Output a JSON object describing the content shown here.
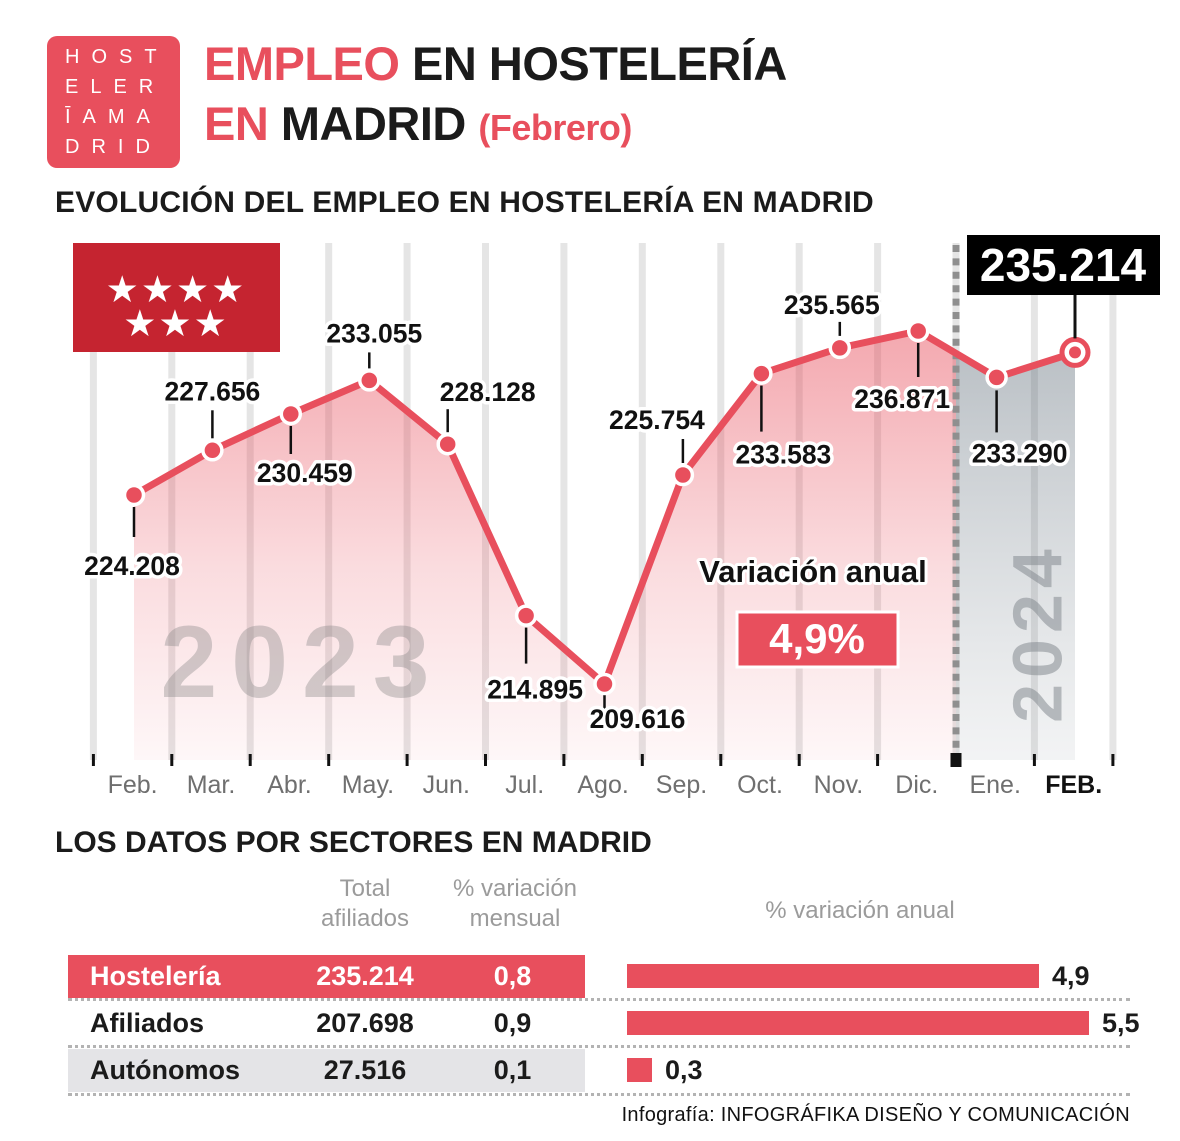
{
  "header": {
    "logo": {
      "lines": [
        "HOST",
        "ELER",
        "ĪAMA",
        "DRID"
      ]
    },
    "title": {
      "line1_accent": "EMPLEO",
      "line1_rest": " EN HOSTELERÍA",
      "line2_accent": "EN",
      "line2_rest": " MADRID ",
      "qualifier": "(Febrero)"
    }
  },
  "chart": {
    "section_title": "EVOLUCIÓN DEL EMPLEO EN HOSTELERÍA EN MADRID"
  },
  "chart_data": {
    "type": "line",
    "title": "EVOLUCIÓN DEL EMPLEO EN HOSTELERÍA EN MADRID",
    "x_categories": [
      "Feb.",
      "Mar.",
      "Abr.",
      "May.",
      "Jun.",
      "Jul.",
      "Ago.",
      "Sep.",
      "Oct.",
      "Nov.",
      "Dic.",
      "Ene.",
      "FEB."
    ],
    "values": [
      224208,
      227656,
      230459,
      233055,
      228128,
      214895,
      209616,
      225754,
      233583,
      235565,
      236871,
      233290,
      235214
    ],
    "point_labels": [
      "224.208",
      "227.656",
      "230.459",
      "233.055",
      "228.128",
      "214.895",
      "209.616",
      "225.754",
      "233.583",
      "235.565",
      "236.871",
      "233.290",
      "235.214"
    ],
    "watermarks": [
      "2023",
      "2024"
    ],
    "highlight": {
      "category": "FEB.",
      "label": "235.214"
    },
    "annotation": {
      "label": "Variación anual",
      "value": "4,9%"
    },
    "ylim": [
      205000,
      240000
    ],
    "grid": "vertical",
    "flag_stars": 7,
    "legend_position": "none"
  },
  "sectors": {
    "section_title": "LOS DATOS POR SECTORES EN MADRID",
    "columns": {
      "total": "Total\nafiliados",
      "monthly": "% variación\nmensual",
      "annual": "% variación anual"
    },
    "rows": [
      {
        "label": "Hostelería",
        "total": "235.214",
        "monthly": "0,8",
        "annual": 4.9,
        "annual_label": "4,9"
      },
      {
        "label": "Afiliados",
        "total": "207.698",
        "monthly": "0,9",
        "annual": 5.5,
        "annual_label": "5,5"
      },
      {
        "label": "Autónomos",
        "total": "27.516",
        "monthly": "0,1",
        "annual": 0.3,
        "annual_label": "0,3"
      }
    ]
  },
  "footer": {
    "credit": "Infografía: INFOGRÁFIKA DISEÑO Y COMUNICACIÓN"
  },
  "colors": {
    "brand": "#e84f5d",
    "flag_red": "#c52430",
    "ink": "#121212",
    "muted_axis": "#6f6f6f",
    "header_gray": "#9b9b9b",
    "row_shade": "#e4e4e7",
    "gridline": "#e5e5e5",
    "year_divider": "#8f8f8f",
    "highlight_box": "#000000"
  }
}
